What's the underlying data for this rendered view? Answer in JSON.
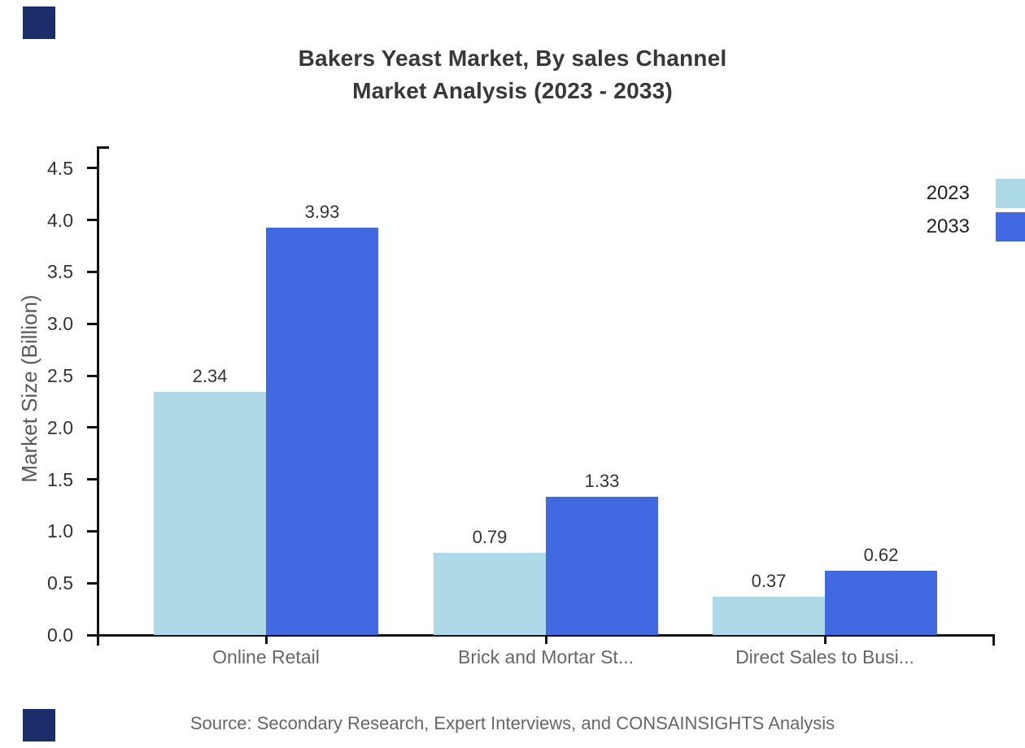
{
  "title": {
    "line1": "Bakers Yeast Market, By sales Channel",
    "line2": "Market Analysis (2023 - 2033)"
  },
  "source": "Source: Secondary Research, Expert Interviews, and CONSAINSIGHTS Analysis",
  "chart_data": {
    "type": "bar",
    "title": "Bakers Yeast Market, By sales Channel Market Analysis (2023 - 2033)",
    "categories": [
      "Online Retail",
      "Brick and Mortar St...",
      "Direct Sales to Busi..."
    ],
    "series": [
      {
        "name": "2023",
        "color": "#ADD8E6",
        "values": [
          2.34,
          0.79,
          0.37
        ]
      },
      {
        "name": "2033",
        "color": "#4169E1",
        "values": [
          3.93,
          1.33,
          0.62
        ]
      }
    ],
    "xlabel": "",
    "ylabel": "Market Size (Billion)",
    "ylim": [
      0,
      4.7
    ],
    "yticks": [
      0.0,
      0.5,
      1.0,
      1.5,
      2.0,
      2.5,
      3.0,
      3.5,
      4.0,
      4.5
    ],
    "grid": false,
    "value_labels": true,
    "legend_position": "top-right-edge"
  },
  "legend": {
    "items": [
      {
        "label": "2023",
        "color": "#ADD8E6"
      },
      {
        "label": "2033",
        "color": "#4169E1"
      }
    ]
  },
  "colors": {
    "series_2023": "#ADD8E6",
    "series_2033": "#4169E1",
    "axis": "#111111",
    "title_text": "#383838",
    "tick_text": "#333333",
    "category_text": "#666666",
    "source_text": "#666666",
    "corner_accent": "#1b2d6b"
  }
}
